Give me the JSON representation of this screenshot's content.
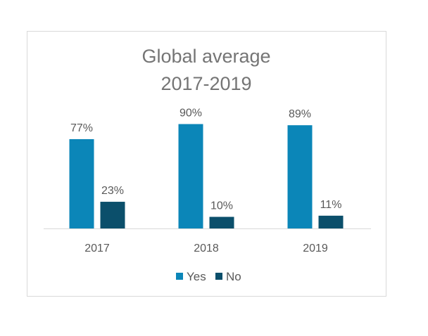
{
  "chart_data": {
    "type": "bar",
    "title_lines": [
      "Global average",
      "2017-2019"
    ],
    "categories": [
      "2017",
      "2018",
      "2019"
    ],
    "series": [
      {
        "name": "Yes",
        "values": [
          77,
          90,
          89
        ],
        "color": "#0b86b8"
      },
      {
        "name": "No",
        "values": [
          23,
          10,
          11
        ],
        "color": "#0b4f6b"
      }
    ],
    "value_suffix": "%",
    "ylim": [
      0,
      100
    ],
    "grid": false,
    "legend_position": "bottom"
  }
}
